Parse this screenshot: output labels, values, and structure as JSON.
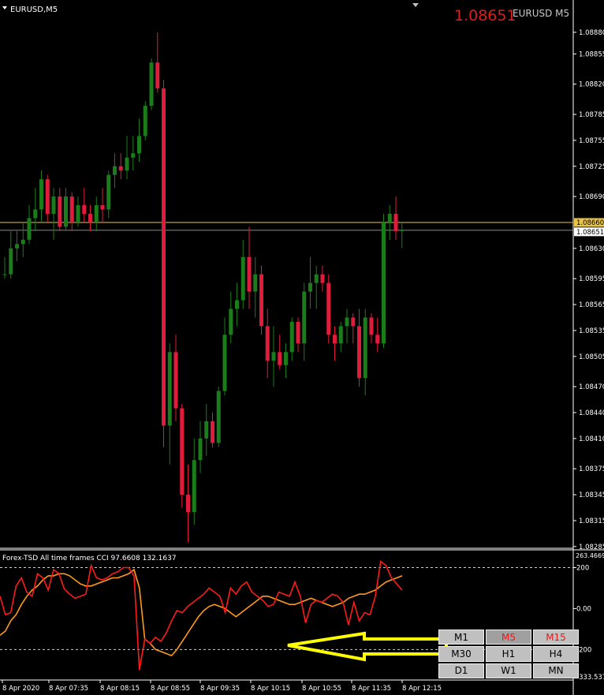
{
  "symbol_label": "EURUSD,M5",
  "price_big": "1.08651",
  "symbol_right": "EURUSD M5",
  "colors": {
    "up": "#1a7d1a",
    "down": "#e01b3c",
    "ask_line": "#e8c34a",
    "bid_line": "#8a8a8a",
    "cci_fast": "#ff1a1a",
    "cci_slow": "#ff9a1a"
  },
  "price_axis": {
    "ticks": [
      "1.08880",
      "1.08855",
      "1.08820",
      "1.08785",
      "1.08755",
      "1.08725",
      "1.08690",
      "1.08630",
      "1.08595",
      "1.08565",
      "1.08535",
      "1.08505",
      "1.08470",
      "1.08440",
      "1.08410",
      "1.08375",
      "1.08345",
      "1.08315",
      "1.08285"
    ],
    "ask_label": "1.08660",
    "bid_label": "1.08651"
  },
  "indicator": {
    "title": "Forex-TSD All time frames CCI 97.6608 132.1637",
    "axis_top": "263.4669",
    "axis_labels": [
      "200",
      "0.00",
      "-200",
      "-333.5376"
    ]
  },
  "time_axis": [
    "8 Apr 2020",
    "8 Apr 07:35",
    "8 Apr 08:15",
    "8 Apr 08:55",
    "8 Apr 09:35",
    "8 Apr 10:15",
    "8 Apr 10:55",
    "8 Apr 11:35",
    "8 Apr 12:15"
  ],
  "timeframes": [
    {
      "label": "M1",
      "active": false
    },
    {
      "label": "M5",
      "active": true
    },
    {
      "label": "M15",
      "active": true
    },
    {
      "label": "M30",
      "active": false
    },
    {
      "label": "H1",
      "active": false
    },
    {
      "label": "H4",
      "active": false
    },
    {
      "label": "D1",
      "active": false
    },
    {
      "label": "W1",
      "active": false
    },
    {
      "label": "MN",
      "active": false
    }
  ],
  "candles": [
    {
      "o": 1.086,
      "h": 1.0862,
      "l": 1.08595,
      "c": 1.086
    },
    {
      "o": 1.086,
      "h": 1.0865,
      "l": 1.08595,
      "c": 1.0863
    },
    {
      "o": 1.0863,
      "h": 1.0865,
      "l": 1.08615,
      "c": 1.08635
    },
    {
      "o": 1.08635,
      "h": 1.0866,
      "l": 1.0862,
      "c": 1.0864
    },
    {
      "o": 1.0864,
      "h": 1.0868,
      "l": 1.08635,
      "c": 1.08665
    },
    {
      "o": 1.08665,
      "h": 1.087,
      "l": 1.0865,
      "c": 1.08675
    },
    {
      "o": 1.08675,
      "h": 1.0872,
      "l": 1.0866,
      "c": 1.0871
    },
    {
      "o": 1.0871,
      "h": 1.08715,
      "l": 1.0866,
      "c": 1.0867
    },
    {
      "o": 1.0867,
      "h": 1.087,
      "l": 1.0864,
      "c": 1.0869
    },
    {
      "o": 1.0869,
      "h": 1.087,
      "l": 1.0865,
      "c": 1.08655
    },
    {
      "o": 1.08655,
      "h": 1.087,
      "l": 1.0865,
      "c": 1.0869
    },
    {
      "o": 1.0869,
      "h": 1.08695,
      "l": 1.0865,
      "c": 1.0866
    },
    {
      "o": 1.0866,
      "h": 1.0869,
      "l": 1.08655,
      "c": 1.0868
    },
    {
      "o": 1.0868,
      "h": 1.087,
      "l": 1.0866,
      "c": 1.0867
    },
    {
      "o": 1.0867,
      "h": 1.0868,
      "l": 1.0865,
      "c": 1.0866
    },
    {
      "o": 1.0866,
      "h": 1.0869,
      "l": 1.0865,
      "c": 1.0868
    },
    {
      "o": 1.0868,
      "h": 1.087,
      "l": 1.0866,
      "c": 1.08675
    },
    {
      "o": 1.08675,
      "h": 1.0872,
      "l": 1.08665,
      "c": 1.08715
    },
    {
      "o": 1.08715,
      "h": 1.0874,
      "l": 1.087,
      "c": 1.08725
    },
    {
      "o": 1.08725,
      "h": 1.0874,
      "l": 1.0871,
      "c": 1.0872
    },
    {
      "o": 1.0872,
      "h": 1.0876,
      "l": 1.0871,
      "c": 1.08735
    },
    {
      "o": 1.08735,
      "h": 1.0876,
      "l": 1.0872,
      "c": 1.0874
    },
    {
      "o": 1.0874,
      "h": 1.0878,
      "l": 1.0873,
      "c": 1.0876
    },
    {
      "o": 1.0876,
      "h": 1.088,
      "l": 1.08755,
      "c": 1.08795
    },
    {
      "o": 1.08795,
      "h": 1.0885,
      "l": 1.0879,
      "c": 1.08845
    },
    {
      "o": 1.08845,
      "h": 1.0888,
      "l": 1.0881,
      "c": 1.08815
    },
    {
      "o": 1.08815,
      "h": 1.08825,
      "l": 1.084,
      "c": 1.08425
    },
    {
      "o": 1.08425,
      "h": 1.0852,
      "l": 1.0838,
      "c": 1.0851
    },
    {
      "o": 1.0851,
      "h": 1.0853,
      "l": 1.0843,
      "c": 1.08445
    },
    {
      "o": 1.08445,
      "h": 1.0845,
      "l": 1.0833,
      "c": 1.08345
    },
    {
      "o": 1.08345,
      "h": 1.0838,
      "l": 1.0829,
      "c": 1.08325
    },
    {
      "o": 1.08325,
      "h": 1.0841,
      "l": 1.0831,
      "c": 1.08385
    },
    {
      "o": 1.08385,
      "h": 1.0843,
      "l": 1.0837,
      "c": 1.0841
    },
    {
      "o": 1.0841,
      "h": 1.0845,
      "l": 1.0839,
      "c": 1.0843
    },
    {
      "o": 1.0843,
      "h": 1.0844,
      "l": 1.084,
      "c": 1.08405
    },
    {
      "o": 1.08405,
      "h": 1.0847,
      "l": 1.084,
      "c": 1.08465
    },
    {
      "o": 1.08465,
      "h": 1.0855,
      "l": 1.0846,
      "c": 1.0853
    },
    {
      "o": 1.0853,
      "h": 1.0858,
      "l": 1.0852,
      "c": 1.0856
    },
    {
      "o": 1.0856,
      "h": 1.0859,
      "l": 1.0854,
      "c": 1.0857
    },
    {
      "o": 1.0857,
      "h": 1.0864,
      "l": 1.0856,
      "c": 1.0862
    },
    {
      "o": 1.0862,
      "h": 1.08655,
      "l": 1.0856,
      "c": 1.0858
    },
    {
      "o": 1.0858,
      "h": 1.0862,
      "l": 1.0855,
      "c": 1.086
    },
    {
      "o": 1.086,
      "h": 1.0861,
      "l": 1.0853,
      "c": 1.0854
    },
    {
      "o": 1.0854,
      "h": 1.0856,
      "l": 1.0848,
      "c": 1.085
    },
    {
      "o": 1.085,
      "h": 1.0854,
      "l": 1.0847,
      "c": 1.0851
    },
    {
      "o": 1.0851,
      "h": 1.0853,
      "l": 1.0849,
      "c": 1.08495
    },
    {
      "o": 1.08495,
      "h": 1.0852,
      "l": 1.0848,
      "c": 1.0851
    },
    {
      "o": 1.0851,
      "h": 1.0855,
      "l": 1.085,
      "c": 1.08545
    },
    {
      "o": 1.08545,
      "h": 1.0855,
      "l": 1.0851,
      "c": 1.0852
    },
    {
      "o": 1.0852,
      "h": 1.0859,
      "l": 1.085,
      "c": 1.0858
    },
    {
      "o": 1.0858,
      "h": 1.0862,
      "l": 1.0856,
      "c": 1.0859
    },
    {
      "o": 1.0859,
      "h": 1.0861,
      "l": 1.0856,
      "c": 1.086
    },
    {
      "o": 1.086,
      "h": 1.0861,
      "l": 1.0858,
      "c": 1.0859
    },
    {
      "o": 1.0859,
      "h": 1.086,
      "l": 1.0852,
      "c": 1.0853
    },
    {
      "o": 1.0853,
      "h": 1.0854,
      "l": 1.085,
      "c": 1.0852
    },
    {
      "o": 1.0852,
      "h": 1.08545,
      "l": 1.0851,
      "c": 1.0854
    },
    {
      "o": 1.0854,
      "h": 1.0856,
      "l": 1.0852,
      "c": 1.0855
    },
    {
      "o": 1.0855,
      "h": 1.08555,
      "l": 1.0852,
      "c": 1.0854
    },
    {
      "o": 1.0854,
      "h": 1.0856,
      "l": 1.0847,
      "c": 1.0848
    },
    {
      "o": 1.0848,
      "h": 1.0856,
      "l": 1.0846,
      "c": 1.0855
    },
    {
      "o": 1.0855,
      "h": 1.08555,
      "l": 1.0852,
      "c": 1.0853
    },
    {
      "o": 1.0853,
      "h": 1.0855,
      "l": 1.0851,
      "c": 1.0852
    },
    {
      "o": 1.0852,
      "h": 1.0867,
      "l": 1.08515,
      "c": 1.0866
    },
    {
      "o": 1.0866,
      "h": 1.0868,
      "l": 1.0864,
      "c": 1.0867
    },
    {
      "o": 1.0867,
      "h": 1.0869,
      "l": 1.0864,
      "c": 1.0865
    },
    {
      "o": 1.0865,
      "h": 1.0866,
      "l": 1.0863,
      "c": 1.08651
    }
  ],
  "cci_fast": [
    60,
    -30,
    -20,
    110,
    150,
    80,
    60,
    170,
    150,
    90,
    190,
    170,
    95,
    70,
    50,
    60,
    70,
    210,
    150,
    140,
    150,
    170,
    180,
    200,
    200,
    160,
    -300,
    -150,
    -170,
    -140,
    -160,
    -120,
    -60,
    -10,
    -20,
    10,
    30,
    50,
    70,
    100,
    80,
    60,
    -20,
    100,
    70,
    110,
    130,
    80,
    60,
    40,
    10,
    20,
    80,
    70,
    60,
    130,
    60,
    -70,
    20,
    40,
    30,
    50,
    70,
    60,
    30,
    -80,
    30,
    -60,
    -20,
    -30,
    60,
    230,
    210,
    150,
    120,
    90
  ],
  "cci_slow": [
    -130,
    -110,
    -60,
    -30,
    20,
    60,
    90,
    110,
    140,
    160,
    160,
    170,
    170,
    160,
    140,
    120,
    110,
    110,
    120,
    130,
    140,
    150,
    150,
    160,
    170,
    190,
    100,
    -150,
    -170,
    -200,
    -210,
    -220,
    -230,
    -200,
    -160,
    -120,
    -80,
    -40,
    -10,
    10,
    20,
    10,
    0,
    -20,
    -40,
    -20,
    0,
    20,
    40,
    60,
    60,
    50,
    40,
    30,
    20,
    20,
    30,
    40,
    50,
    40,
    30,
    20,
    10,
    20,
    30,
    50,
    60,
    70,
    70,
    80,
    90,
    110,
    130,
    140,
    150,
    160
  ]
}
